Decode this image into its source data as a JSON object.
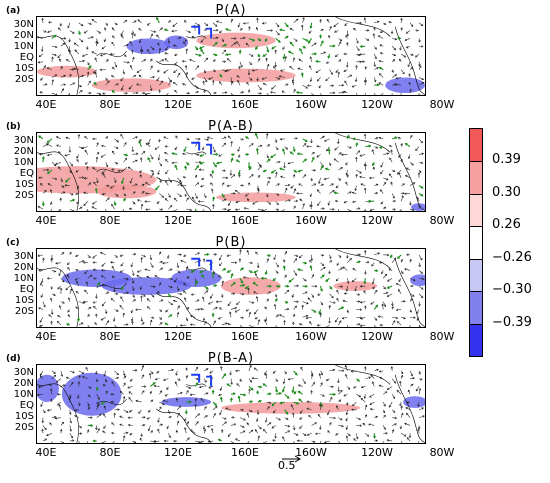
{
  "panels": [
    {
      "label": "(a)",
      "title": "P(A)"
    },
    {
      "label": "(b)",
      "title": "P(A-B)"
    },
    {
      "label": "(c)",
      "title": "P(B)"
    },
    {
      "label": "(d)",
      "title": "P(B-A)"
    }
  ],
  "lat_labels": [
    "30N",
    "20N",
    "10N",
    "EQ",
    "10S",
    "20S"
  ],
  "lon_labels": [
    "40E",
    "80E",
    "120E",
    "160E",
    "160W",
    "120W",
    "80W"
  ],
  "colorbar": {
    "labels": [
      "0.39",
      "0.30",
      "0.26",
      "−0.26",
      "−0.30",
      "−0.39"
    ],
    "colors": [
      "#f25a5a",
      "#f6a0a0",
      "#fcd8d8",
      "#ffffff",
      "#c8c8f5",
      "#8080ee",
      "#3333ee"
    ]
  },
  "reference_vector": {
    "label": "0.5"
  },
  "colors": {
    "positive": "#f29b9b",
    "negative": "#6a6aee",
    "wind_significant": "#1e8c1e",
    "wind": "#222222",
    "box": "#1c3cf0"
  }
}
